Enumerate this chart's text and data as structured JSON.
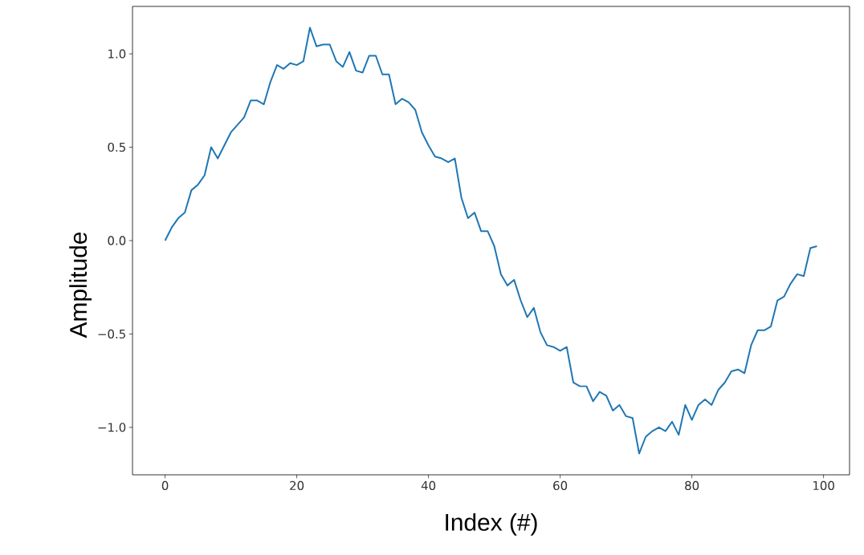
{
  "chart_data": {
    "type": "line",
    "xlabel": "Index (#)",
    "ylabel": "Amplitude",
    "x": [
      0,
      1,
      2,
      3,
      4,
      5,
      6,
      7,
      8,
      9,
      10,
      11,
      12,
      13,
      14,
      15,
      16,
      17,
      18,
      19,
      20,
      21,
      22,
      23,
      24,
      25,
      26,
      27,
      28,
      29,
      30,
      31,
      32,
      33,
      34,
      35,
      36,
      37,
      38,
      39,
      40,
      41,
      42,
      43,
      44,
      45,
      46,
      47,
      48,
      49,
      50,
      51,
      52,
      53,
      54,
      55,
      56,
      57,
      58,
      59,
      60,
      61,
      62,
      63,
      64,
      65,
      66,
      67,
      68,
      69,
      70,
      71,
      72,
      73,
      74,
      75,
      76,
      77,
      78,
      79,
      80,
      81,
      82,
      83,
      84,
      85,
      86,
      87,
      88,
      89,
      90,
      91,
      92,
      93,
      94,
      95,
      96,
      97,
      98,
      99
    ],
    "series": [
      {
        "color": "#1f77b4",
        "values": [
          0.0,
          0.07,
          0.12,
          0.15,
          0.27,
          0.3,
          0.35,
          0.5,
          0.44,
          0.51,
          0.58,
          0.62,
          0.66,
          0.75,
          0.75,
          0.73,
          0.85,
          0.94,
          0.92,
          0.95,
          0.94,
          0.96,
          1.14,
          1.04,
          1.05,
          1.05,
          0.96,
          0.93,
          1.01,
          0.91,
          0.9,
          0.99,
          0.99,
          0.89,
          0.89,
          0.73,
          0.76,
          0.74,
          0.7,
          0.58,
          0.51,
          0.45,
          0.44,
          0.42,
          0.44,
          0.23,
          0.12,
          0.15,
          0.05,
          0.05,
          -0.03,
          -0.18,
          -0.24,
          -0.21,
          -0.32,
          -0.41,
          -0.36,
          -0.49,
          -0.56,
          -0.57,
          -0.59,
          -0.57,
          -0.76,
          -0.78,
          -0.78,
          -0.86,
          -0.81,
          -0.83,
          -0.91,
          -0.88,
          -0.94,
          -0.95,
          -1.14,
          -1.05,
          -1.02,
          -1.0,
          -1.02,
          -0.97,
          -1.04,
          -0.88,
          -0.96,
          -0.88,
          -0.85,
          -0.88,
          -0.8,
          -0.76,
          -0.7,
          -0.69,
          -0.71,
          -0.56,
          -0.48,
          -0.48,
          -0.46,
          -0.32,
          -0.3,
          -0.23,
          -0.18,
          -0.19,
          -0.04,
          -0.03
        ]
      }
    ],
    "xlim": [
      -4.95,
      103.95
    ],
    "ylim": [
      -1.254,
      1.254
    ],
    "xticks": [
      0,
      20,
      40,
      60,
      80,
      100
    ],
    "yticks": [
      {
        "value": -1.0,
        "label": "−1.0"
      },
      {
        "value": -0.5,
        "label": "−0.5"
      },
      {
        "value": 0.0,
        "label": "0.0"
      },
      {
        "value": 0.5,
        "label": "0.5"
      },
      {
        "value": 1.0,
        "label": "1.0"
      }
    ],
    "marker": "none",
    "line_style": "solid"
  }
}
